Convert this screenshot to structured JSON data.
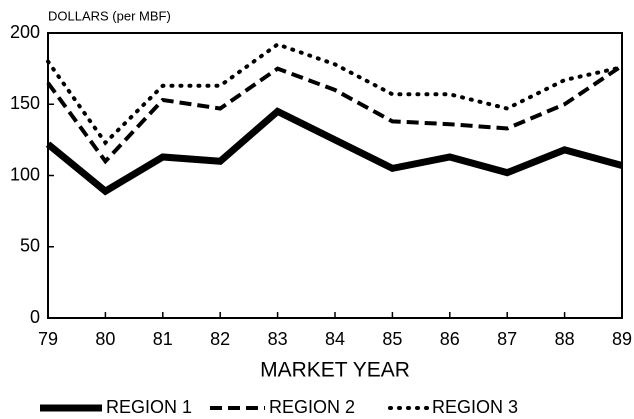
{
  "chart_data": {
    "type": "line",
    "y_label": "DOLLARS (per MBF)",
    "x_label": "MARKET YEAR",
    "x": [
      79,
      80,
      81,
      82,
      83,
      84,
      85,
      86,
      87,
      88,
      89
    ],
    "xlim": [
      79,
      89
    ],
    "xticks": [
      79,
      80,
      81,
      82,
      83,
      84,
      85,
      86,
      87,
      88,
      89
    ],
    "ylim": [
      0,
      200
    ],
    "yticks": [
      0,
      50,
      100,
      150,
      200
    ],
    "legend": "bottom",
    "series": [
      {
        "name": "REGION 1",
        "color": "#000000",
        "style": "solid",
        "values": [
          122,
          89,
          113,
          110,
          145,
          125,
          105,
          113,
          102,
          118,
          107
        ]
      },
      {
        "name": "REGION 2",
        "color": "#000000",
        "style": "dashed",
        "values": [
          165,
          110,
          153,
          147,
          175,
          160,
          138,
          136,
          133,
          150,
          177
        ]
      },
      {
        "name": "REGION 3",
        "color": "#000000",
        "style": "dotted",
        "values": [
          180,
          123,
          163,
          163,
          192,
          178,
          157,
          157,
          147,
          167,
          176
        ]
      }
    ]
  }
}
